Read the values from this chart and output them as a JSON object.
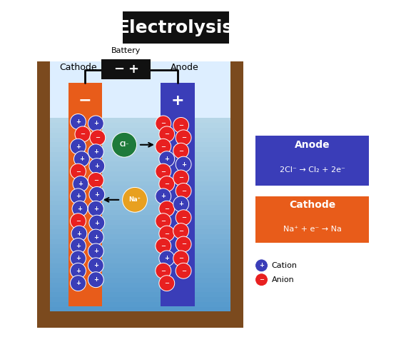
{
  "title": "Electrolysis",
  "title_bg": "#111111",
  "title_color": "#ffffff",
  "bg_color": "#ffffff",
  "tank_color": "#7B4A1E",
  "tank_wall_thickness": 0.018,
  "water_color_top": "#b8d8e8",
  "water_color_bottom": "#5599cc",
  "cathode_color": "#E85C1A",
  "anode_color": "#3A3DB8",
  "cathode_label": "Cathode",
  "anode_label": "Anode",
  "battery_color": "#111111",
  "battery_label": "Battery",
  "anode_box_color": "#3A3DB8",
  "cathode_box_color": "#E85C1A",
  "anode_box_title": "Anode",
  "cathode_box_title": "Cathode",
  "anode_reaction": "2Cl⁻ → Cl₂ + 2e⁻",
  "cathode_reaction": "Na⁺ + e⁻ → Na",
  "cation_color": "#3A3DB8",
  "anion_color": "#E82020",
  "cation_label": "Cation",
  "anion_label": "Anion",
  "cl_ion_color": "#1E7A3A",
  "na_ion_color": "#E8A020",
  "plus_sign_color": "#ffffff",
  "minus_sign_color": "#ffffff"
}
